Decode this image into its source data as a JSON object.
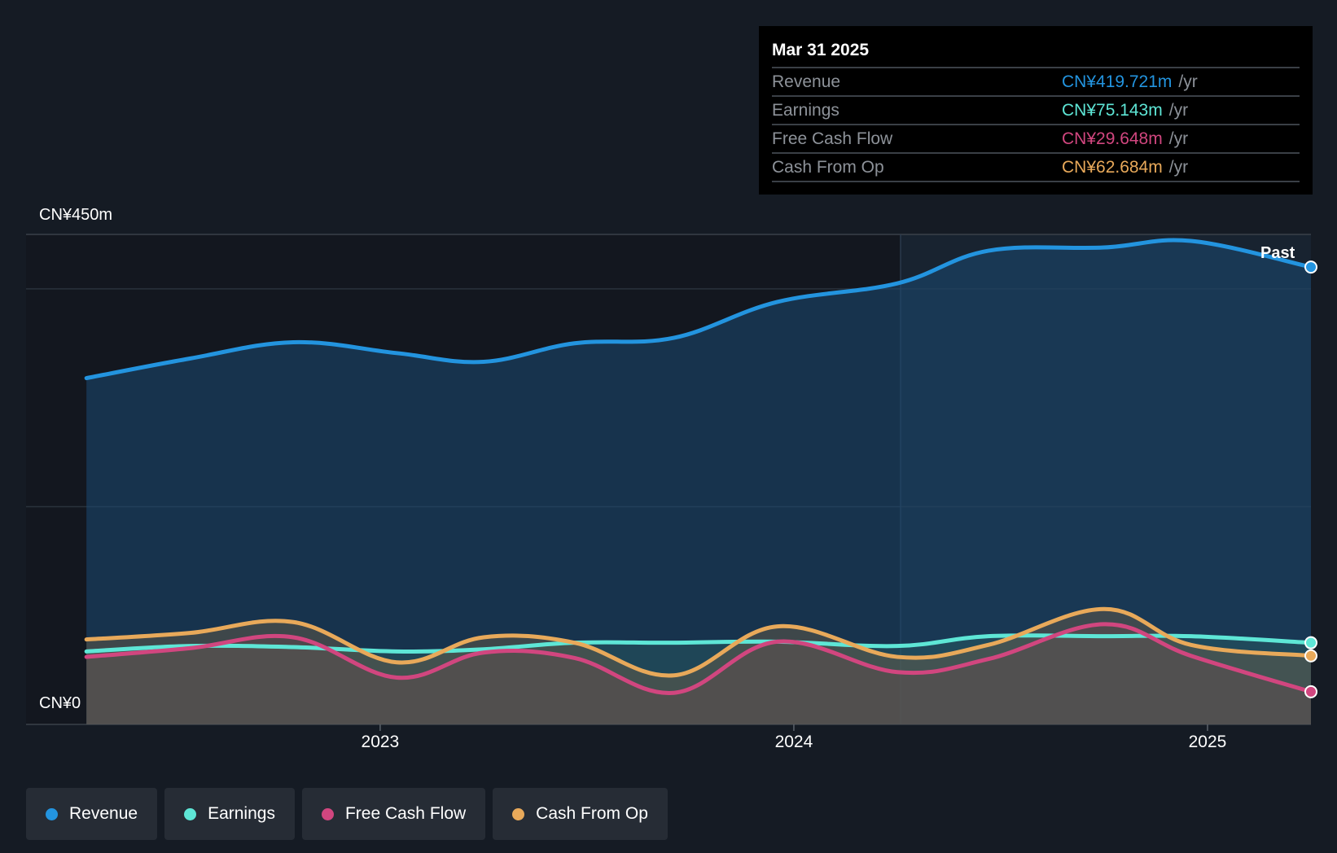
{
  "tooltip": {
    "date": "Mar 31 2025",
    "rows": [
      {
        "label": "Revenue",
        "value": "CN¥419.721m",
        "unit": "/yr",
        "color": "#2394df"
      },
      {
        "label": "Earnings",
        "value": "CN¥75.143m",
        "unit": "/yr",
        "color": "#5ee6d6"
      },
      {
        "label": "Free Cash Flow",
        "value": "CN¥29.648m",
        "unit": "/yr",
        "color": "#d1467f"
      },
      {
        "label": "Cash From Op",
        "value": "CN¥62.684m",
        "unit": "/yr",
        "color": "#e8a95a"
      }
    ]
  },
  "past_label": "Past",
  "legend": [
    {
      "label": "Revenue",
      "color": "#2394df"
    },
    {
      "label": "Earnings",
      "color": "#5ee6d6"
    },
    {
      "label": "Free Cash Flow",
      "color": "#d1467f"
    },
    {
      "label": "Cash From Op",
      "color": "#e8a95a"
    }
  ],
  "chart_data": {
    "type": "area",
    "y_tick_labels": [
      "CN¥450m",
      "CN¥0"
    ],
    "ylim": [
      0,
      450
    ],
    "x_ticks": [
      {
        "label": "2023",
        "x": 2023.0
      },
      {
        "label": "2024",
        "x": 2024.0
      },
      {
        "label": "2025",
        "x": 2025.0
      }
    ],
    "xlim": [
      2022.27,
      2025.25
    ],
    "past_start": 2024.25,
    "grid": true,
    "legend_position": "bottom",
    "series": [
      {
        "name": "Revenue",
        "color": "#2394df",
        "x": [
          2022.29,
          2022.54,
          2022.79,
          2023.04,
          2023.25,
          2023.47,
          2023.71,
          2023.96,
          2024.25,
          2024.47,
          2024.75,
          2024.96,
          2025.25
        ],
        "values": [
          318,
          336,
          351,
          341,
          333,
          350,
          355,
          388,
          405,
          435,
          438,
          444,
          420
        ]
      },
      {
        "name": "Earnings",
        "color": "#5ee6d6",
        "x": [
          2022.29,
          2022.54,
          2022.79,
          2023.04,
          2023.25,
          2023.47,
          2023.71,
          2023.96,
          2024.25,
          2024.47,
          2024.75,
          2024.96,
          2025.25
        ],
        "values": [
          67,
          72,
          71,
          67,
          69,
          75,
          75,
          76,
          72,
          81,
          81,
          81,
          75
        ]
      },
      {
        "name": "Free Cash Flow",
        "color": "#d1467f",
        "x": [
          2022.29,
          2022.54,
          2022.79,
          2023.04,
          2023.25,
          2023.47,
          2023.71,
          2023.96,
          2024.25,
          2024.47,
          2024.75,
          2024.96,
          2025.25
        ],
        "values": [
          62,
          70,
          80,
          43,
          66,
          61,
          29,
          76,
          48,
          60,
          92,
          63,
          30
        ]
      },
      {
        "name": "Cash From Op",
        "color": "#e8a95a",
        "x": [
          2022.29,
          2022.54,
          2022.79,
          2023.04,
          2023.25,
          2023.47,
          2023.71,
          2023.96,
          2024.25,
          2024.47,
          2024.75,
          2024.96,
          2025.25
        ],
        "values": [
          78,
          84,
          94,
          57,
          80,
          75,
          45,
          90,
          62,
          73,
          106,
          73,
          63
        ]
      }
    ]
  }
}
